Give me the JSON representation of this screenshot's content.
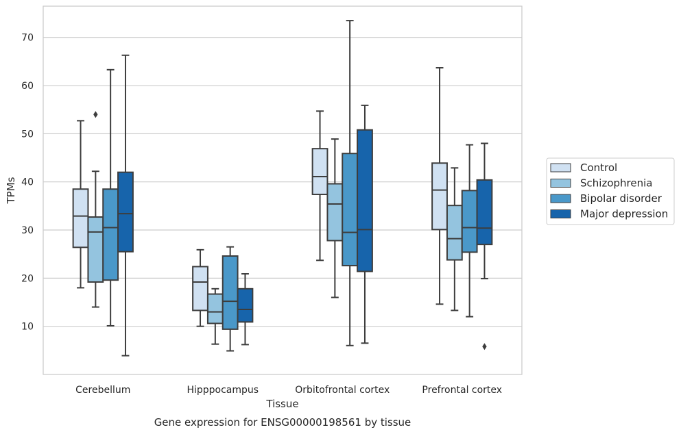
{
  "chart_data": {
    "type": "box",
    "title": "Gene expression for ENSG00000198561 by tissue",
    "xlabel": "Tissue",
    "ylabel": "TPMs",
    "ylim": [
      0,
      76.5
    ],
    "yticks": [
      10,
      20,
      30,
      40,
      50,
      60,
      70
    ],
    "grid": "horizontal",
    "legend_position": "right",
    "categories": [
      "Cerebellum",
      "Hipppocampus",
      "Orbitofrontal cortex",
      "Prefrontal cortex"
    ],
    "series": [
      {
        "name": "Control",
        "color": "#d0e1f2",
        "boxes": [
          {
            "whisker_low": 18.0,
            "q1": 26.4,
            "median": 32.9,
            "q3": 38.5,
            "whisker_high": 52.7,
            "outliers": []
          },
          {
            "whisker_low": 10.0,
            "q1": 13.3,
            "median": 19.2,
            "q3": 22.4,
            "whisker_high": 25.9,
            "outliers": []
          },
          {
            "whisker_low": 23.7,
            "q1": 37.4,
            "median": 41.1,
            "q3": 46.9,
            "whisker_high": 54.7,
            "outliers": []
          },
          {
            "whisker_low": 14.6,
            "q1": 30.1,
            "median": 38.3,
            "q3": 43.9,
            "whisker_high": 63.7,
            "outliers": []
          }
        ]
      },
      {
        "name": "Schizophrenia",
        "color": "#94c4df",
        "boxes": [
          {
            "whisker_low": 14.0,
            "q1": 19.2,
            "median": 29.6,
            "q3": 32.7,
            "whisker_high": 42.2,
            "outliers": [
              54.0
            ]
          },
          {
            "whisker_low": 6.3,
            "q1": 10.6,
            "median": 13.0,
            "q3": 16.7,
            "whisker_high": 17.8,
            "outliers": []
          },
          {
            "whisker_low": 16.0,
            "q1": 27.8,
            "median": 35.4,
            "q3": 39.6,
            "whisker_high": 48.9,
            "outliers": []
          },
          {
            "whisker_low": 13.3,
            "q1": 23.8,
            "median": 28.2,
            "q3": 35.1,
            "whisker_high": 42.9,
            "outliers": []
          }
        ]
      },
      {
        "name": "Bipolar disorder",
        "color": "#4a98c9",
        "boxes": [
          {
            "whisker_low": 10.1,
            "q1": 19.6,
            "median": 30.5,
            "q3": 38.5,
            "whisker_high": 63.3,
            "outliers": []
          },
          {
            "whisker_low": 4.9,
            "q1": 9.4,
            "median": 15.2,
            "q3": 24.6,
            "whisker_high": 26.5,
            "outliers": []
          },
          {
            "whisker_low": 6.0,
            "q1": 22.6,
            "median": 29.5,
            "q3": 45.9,
            "whisker_high": 73.5,
            "outliers": []
          },
          {
            "whisker_low": 12.0,
            "q1": 25.4,
            "median": 30.5,
            "q3": 38.2,
            "whisker_high": 47.7,
            "outliers": []
          }
        ]
      },
      {
        "name": "Major depression",
        "color": "#1764ab",
        "boxes": [
          {
            "whisker_low": 3.9,
            "q1": 25.5,
            "median": 33.4,
            "q3": 42.0,
            "whisker_high": 66.3,
            "outliers": []
          },
          {
            "whisker_low": 6.2,
            "q1": 10.9,
            "median": 13.5,
            "q3": 17.8,
            "whisker_high": 20.9,
            "outliers": []
          },
          {
            "whisker_low": 6.5,
            "q1": 21.4,
            "median": 30.1,
            "q3": 50.8,
            "whisker_high": 55.9,
            "outliers": []
          },
          {
            "whisker_low": 19.9,
            "q1": 27.0,
            "median": 30.4,
            "q3": 40.4,
            "whisker_high": 48.0,
            "outliers": [
              5.8
            ]
          }
        ]
      }
    ]
  }
}
